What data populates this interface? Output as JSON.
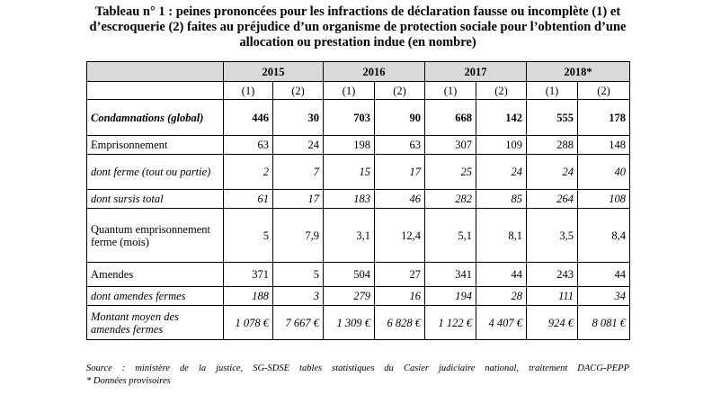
{
  "title": "Tableau n° 1 : peines prononcées pour les infractions de déclaration fausse ou incomplète (1) et d’escroquerie (2) faites au préjudice d’un organisme de protection sociale pour l’obtention d’une allocation ou prestation indue (en nombre)",
  "years": [
    "2015",
    "2016",
    "2017",
    "2018*"
  ],
  "sub_headers": [
    "(1)",
    "(2)",
    "(1)",
    "(2)",
    "(1)",
    "(2)",
    "(1)",
    "(2)"
  ],
  "rows": [
    {
      "label": "Condamnations (global)",
      "values": [
        "446",
        "30",
        "703",
        "90",
        "668",
        "142",
        "555",
        "178"
      ]
    },
    {
      "label": "Emprisonnement",
      "values": [
        "63",
        "24",
        "198",
        "63",
        "307",
        "109",
        "288",
        "148"
      ]
    },
    {
      "label": "dont ferme (tout ou partie)",
      "values": [
        "2",
        "7",
        "15",
        "17",
        "25",
        "24",
        "24",
        "40"
      ]
    },
    {
      "label": "dont sursis total",
      "values": [
        "61",
        "17",
        "183",
        "46",
        "282",
        "85",
        "264",
        "108"
      ]
    },
    {
      "label": "Quantum emprisonnement ferme (mois)",
      "values": [
        "5",
        "7,9",
        "3,1",
        "12,4",
        "5,1",
        "8,1",
        "3,5",
        "8,4"
      ]
    },
    {
      "label": "Amendes",
      "values": [
        "371",
        "5",
        "504",
        "27",
        "341",
        "44",
        "243",
        "44"
      ]
    },
    {
      "label": "dont amendes fermes",
      "values": [
        "188",
        "3",
        "279",
        "16",
        "194",
        "28",
        "111",
        "34"
      ]
    },
    {
      "label": "Montant moyen des amendes fermes",
      "values": [
        "1 078 €",
        "7 667 €",
        "1 309 €",
        "6 828 €",
        "1 122 €",
        "4 407 €",
        "924 €",
        "8 081 €"
      ]
    }
  ],
  "source": "Source : ministère de la justice, SG-SDSE tables statistiques du Casier judiciaire national, traitement DACG-PEPP",
  "note": "* Données provisoires"
}
